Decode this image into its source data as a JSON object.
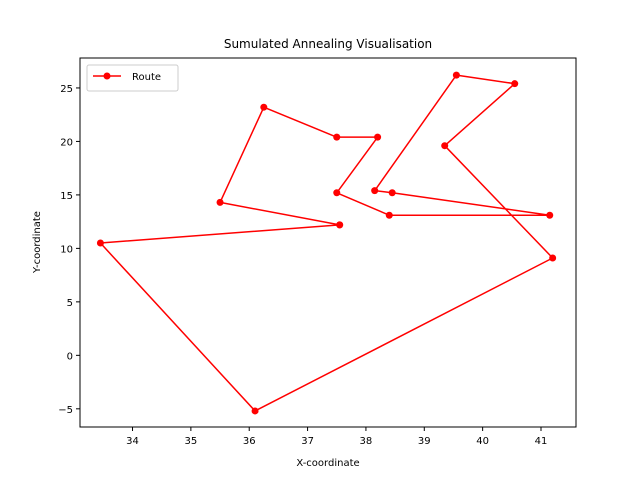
{
  "chart_data": {
    "type": "line",
    "title": "Sumulated Annealing Visualisation",
    "xlabel": "X-coordinate",
    "ylabel": "Y-coordinate",
    "xlim": [
      33.1,
      41.6
    ],
    "ylim": [
      -6.7,
      27.8
    ],
    "xticks": [
      34,
      35,
      36,
      37,
      38,
      39,
      40,
      41
    ],
    "yticks": [
      -5,
      0,
      5,
      10,
      15,
      20,
      25
    ],
    "grid": false,
    "legend": {
      "position": "top-left",
      "entries": [
        "Route"
      ]
    },
    "series": [
      {
        "name": "Route",
        "color": "#ff0000",
        "marker": "circle",
        "x": [
          37.55,
          33.45,
          36.1,
          41.2,
          39.35,
          40.55,
          39.55,
          38.15,
          38.45,
          41.15,
          38.4,
          37.5,
          38.2,
          37.5,
          36.25,
          35.5,
          37.55
        ],
        "y": [
          12.2,
          10.5,
          -5.2,
          9.1,
          19.6,
          25.4,
          26.2,
          15.4,
          15.2,
          13.1,
          13.1,
          15.2,
          20.4,
          20.4,
          23.2,
          14.3,
          12.2
        ]
      }
    ]
  }
}
